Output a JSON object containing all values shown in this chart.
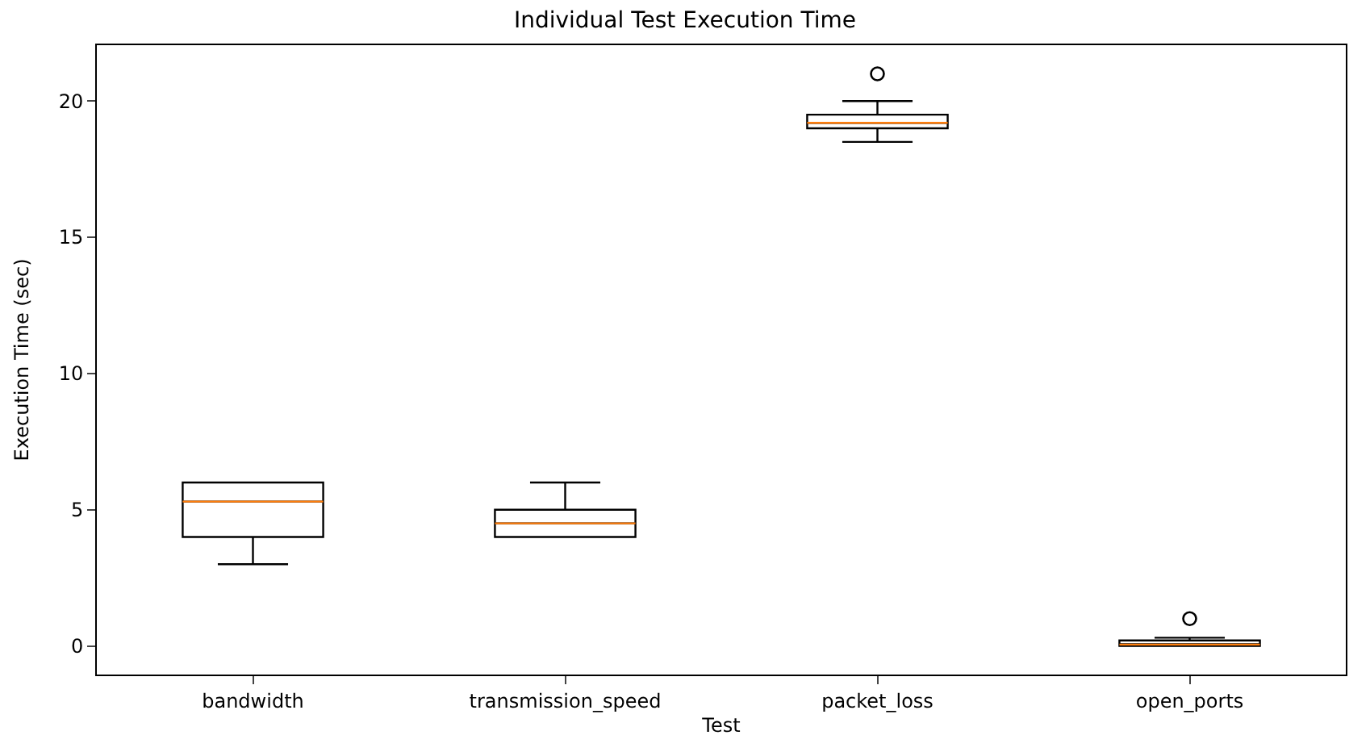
{
  "chart_data": {
    "type": "box",
    "title": "Individual Test Execution Time",
    "xlabel": "Test",
    "ylabel": "Execution Time (sec)",
    "categories": [
      "bandwidth",
      "transmission_speed",
      "packet_loss",
      "open_ports"
    ],
    "boxes": [
      {
        "low": 3,
        "q1": 4,
        "median": 5.3,
        "q3": 6,
        "high": 6
      },
      {
        "low": 4,
        "q1": 4,
        "median": 4.5,
        "q3": 5,
        "high": 6
      },
      {
        "low": 18.5,
        "q1": 19,
        "median": 19.2,
        "q3": 19.5,
        "high": 20,
        "outliers": [
          21
        ]
      },
      {
        "low": 0,
        "q1": 0,
        "median": 0.05,
        "q3": 0.2,
        "high": 0.3,
        "outliers": [
          1
        ]
      }
    ],
    "color": "#000000",
    "ylim": [
      -1.05,
      22.05
    ],
    "yticks": [
      0,
      5,
      10,
      15,
      20
    ]
  }
}
